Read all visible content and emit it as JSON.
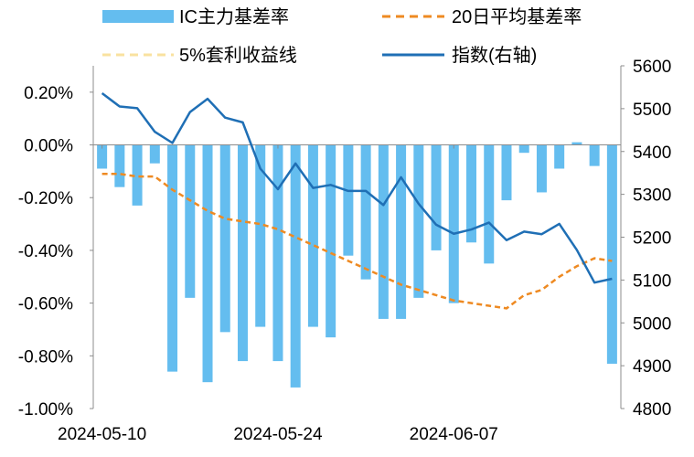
{
  "chart_data": {
    "type": "bar+line",
    "title": "",
    "legend": [
      {
        "key": "bar",
        "label": "IC主力基差率",
        "color": "#64BDEF",
        "style": "bar"
      },
      {
        "key": "ma20",
        "label": "20日平均基差率",
        "color": "#EE8A22",
        "style": "dashed"
      },
      {
        "key": "q5",
        "label": "5%套利收益线",
        "color": "#F9E2A0",
        "style": "dashed"
      },
      {
        "key": "index",
        "label": "指数(右轴)",
        "color": "#1F6FB5",
        "style": "solid"
      }
    ],
    "x_tick_labels": [
      "2024-05-10",
      "2024-05-24",
      "2024-06-07"
    ],
    "x_tick_positions": [
      0,
      10,
      20
    ],
    "left_axis": {
      "min": -1.0,
      "max": 0.3,
      "ticks": [
        -1.0,
        -0.8,
        -0.6,
        -0.4,
        -0.2,
        0.0,
        0.2
      ],
      "tick_labels": [
        "-1.00%",
        "-0.80%",
        "-0.60%",
        "-0.40%",
        "-0.20%",
        "0.00%",
        "0.20%"
      ]
    },
    "right_axis": {
      "min": 4800,
      "max": 5600,
      "ticks": [
        4800,
        4900,
        5000,
        5100,
        5200,
        5300,
        5400,
        5500,
        5600
      ],
      "tick_labels": [
        "4800",
        "4900",
        "5000",
        "5100",
        "5200",
        "5300",
        "5400",
        "5500",
        "5600"
      ]
    },
    "series": [
      {
        "name": "IC主力基差率",
        "axis": "left",
        "values": [
          -0.09,
          -0.16,
          -0.23,
          -0.07,
          -0.86,
          -0.58,
          -0.9,
          -0.71,
          -0.82,
          -0.69,
          -0.82,
          -0.92,
          -0.69,
          -0.73,
          -0.42,
          -0.51,
          -0.66,
          -0.66,
          -0.58,
          -0.4,
          -0.6,
          -0.37,
          -0.45,
          -0.21,
          -0.03,
          -0.18,
          -0.09,
          0.01,
          -0.08,
          -0.83
        ]
      },
      {
        "name": "20日平均基差率",
        "axis": "left",
        "values": [
          -0.11,
          -0.11,
          -0.12,
          -0.12,
          -0.17,
          -0.21,
          -0.25,
          -0.28,
          -0.29,
          -0.3,
          -0.32,
          -0.35,
          -0.38,
          -0.41,
          -0.44,
          -0.47,
          -0.5,
          -0.53,
          -0.55,
          -0.57,
          -0.59,
          -0.6,
          -0.61,
          -0.62,
          -0.57,
          -0.55,
          -0.5,
          -0.46,
          -0.43,
          -0.44
        ]
      },
      {
        "name": "5%套利收益线",
        "axis": "left",
        "values": []
      },
      {
        "name": "指数(右轴)",
        "axis": "right",
        "values": [
          5536,
          5505,
          5501,
          5446,
          5420,
          5492,
          5523,
          5479,
          5468,
          5360,
          5312,
          5372,
          5315,
          5322,
          5308,
          5308,
          5275,
          5340,
          5278,
          5229,
          5208,
          5218,
          5234,
          5193,
          5213,
          5207,
          5231,
          5170,
          5094,
          5103
        ]
      }
    ]
  }
}
